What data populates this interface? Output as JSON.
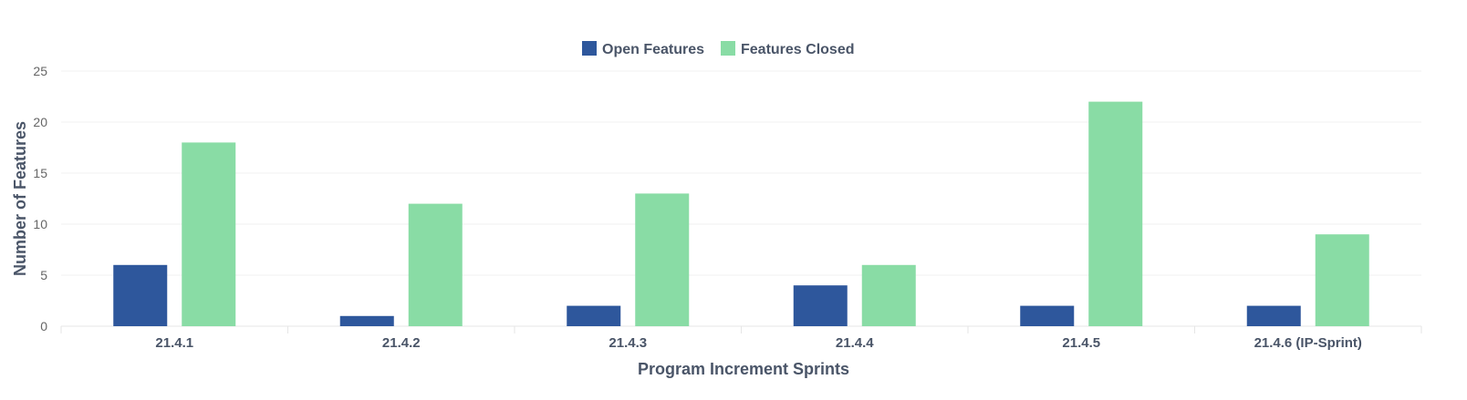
{
  "chart_data": {
    "type": "bar",
    "categories": [
      "21.4.1",
      "21.4.2",
      "21.4.3",
      "21.4.4",
      "21.4.5",
      "21.4.6 (IP-Sprint)"
    ],
    "series": [
      {
        "name": "Open Features",
        "values": [
          6,
          1,
          2,
          4,
          2,
          2
        ],
        "color": "#2e579c"
      },
      {
        "name": "Features Closed",
        "values": [
          18,
          12,
          13,
          6,
          22,
          9
        ],
        "color": "#89dca5"
      }
    ],
    "xlabel": "Program Increment Sprints",
    "ylabel": "Number of Features",
    "ylim": [
      0,
      25
    ],
    "yticks": [
      0,
      5,
      10,
      15,
      20,
      25
    ],
    "grid": true,
    "legend": "top-center"
  }
}
